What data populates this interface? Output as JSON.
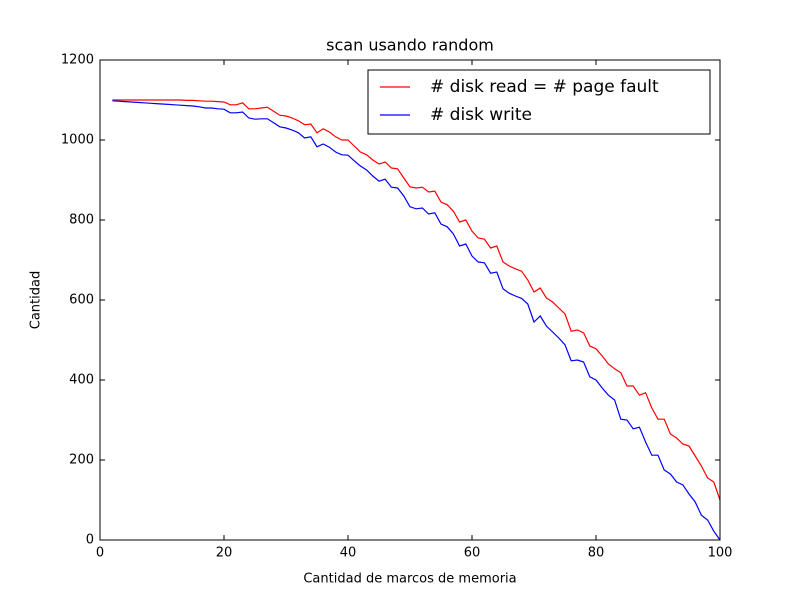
{
  "chart_data": {
    "type": "line",
    "title": "scan usando random",
    "x_label": "Cantidad de marcos de memoria",
    "y_label": "Cantidad",
    "x": [
      2,
      3,
      4,
      5,
      6,
      7,
      8,
      9,
      10,
      11,
      12,
      13,
      14,
      15,
      16,
      17,
      18,
      19,
      20,
      21,
      22,
      23,
      24,
      25,
      26,
      27,
      28,
      29,
      30,
      31,
      32,
      33,
      34,
      35,
      36,
      37,
      38,
      39,
      40,
      41,
      42,
      43,
      44,
      45,
      46,
      47,
      48,
      49,
      50,
      51,
      52,
      53,
      54,
      55,
      56,
      57,
      58,
      59,
      60,
      61,
      62,
      63,
      64,
      65,
      66,
      67,
      68,
      69,
      70,
      71,
      72,
      73,
      74,
      75,
      76,
      77,
      78,
      79,
      80,
      81,
      82,
      83,
      84,
      85,
      86,
      87,
      88,
      89,
      90,
      91,
      92,
      93,
      94,
      95,
      96,
      97,
      98,
      99,
      100
    ],
    "series": [
      {
        "name": "# disk read = # page fault",
        "color": "#ff0000",
        "values": [
          1100,
          1100,
          1100,
          1100,
          1100,
          1100,
          1100,
          1100,
          1100,
          1100,
          1100,
          1100,
          1099,
          1099,
          1098,
          1097,
          1097,
          1096,
          1095,
          1088,
          1088,
          1093,
          1078,
          1078,
          1080,
          1082,
          1072,
          1062,
          1060,
          1055,
          1048,
          1038,
          1040,
          1018,
          1028,
          1020,
          1008,
          1000,
          1000,
          985,
          970,
          963,
          950,
          940,
          945,
          930,
          928,
          905,
          883,
          880,
          882,
          870,
          872,
          845,
          838,
          822,
          795,
          800,
          772,
          755,
          752,
          730,
          735,
          695,
          685,
          678,
          672,
          650,
          620,
          630,
          605,
          595,
          580,
          565,
          522,
          525,
          518,
          485,
          478,
          460,
          440,
          428,
          418,
          385,
          385,
          362,
          368,
          330,
          302,
          302,
          265,
          255,
          240,
          235,
          210,
          185,
          155,
          145,
          100
        ]
      },
      {
        "name": "# disk write",
        "color": "#0000ff",
        "values": [
          1098,
          1097,
          1096,
          1095,
          1094,
          1093,
          1092,
          1091,
          1090,
          1089,
          1088,
          1087,
          1086,
          1085,
          1083,
          1080,
          1080,
          1078,
          1077,
          1068,
          1068,
          1070,
          1055,
          1052,
          1053,
          1053,
          1043,
          1033,
          1030,
          1025,
          1018,
          1005,
          1008,
          983,
          990,
          982,
          970,
          963,
          962,
          948,
          935,
          925,
          910,
          897,
          902,
          882,
          880,
          860,
          833,
          828,
          830,
          815,
          818,
          790,
          783,
          765,
          735,
          740,
          710,
          695,
          693,
          667,
          670,
          628,
          617,
          610,
          604,
          590,
          545,
          560,
          535,
          520,
          505,
          488,
          448,
          450,
          445,
          408,
          400,
          380,
          362,
          350,
          302,
          300,
          278,
          282,
          245,
          212,
          212,
          175,
          165,
          145,
          138,
          115,
          95,
          62,
          50,
          22,
          0
        ]
      }
    ],
    "xlim": [
      0,
      100
    ],
    "xticks": [
      0,
      20,
      40,
      60,
      80,
      100
    ],
    "ylim": [
      0,
      1200
    ],
    "yticks": [
      0,
      200,
      400,
      600,
      800,
      1000,
      1200
    ],
    "legend": "upper right"
  }
}
